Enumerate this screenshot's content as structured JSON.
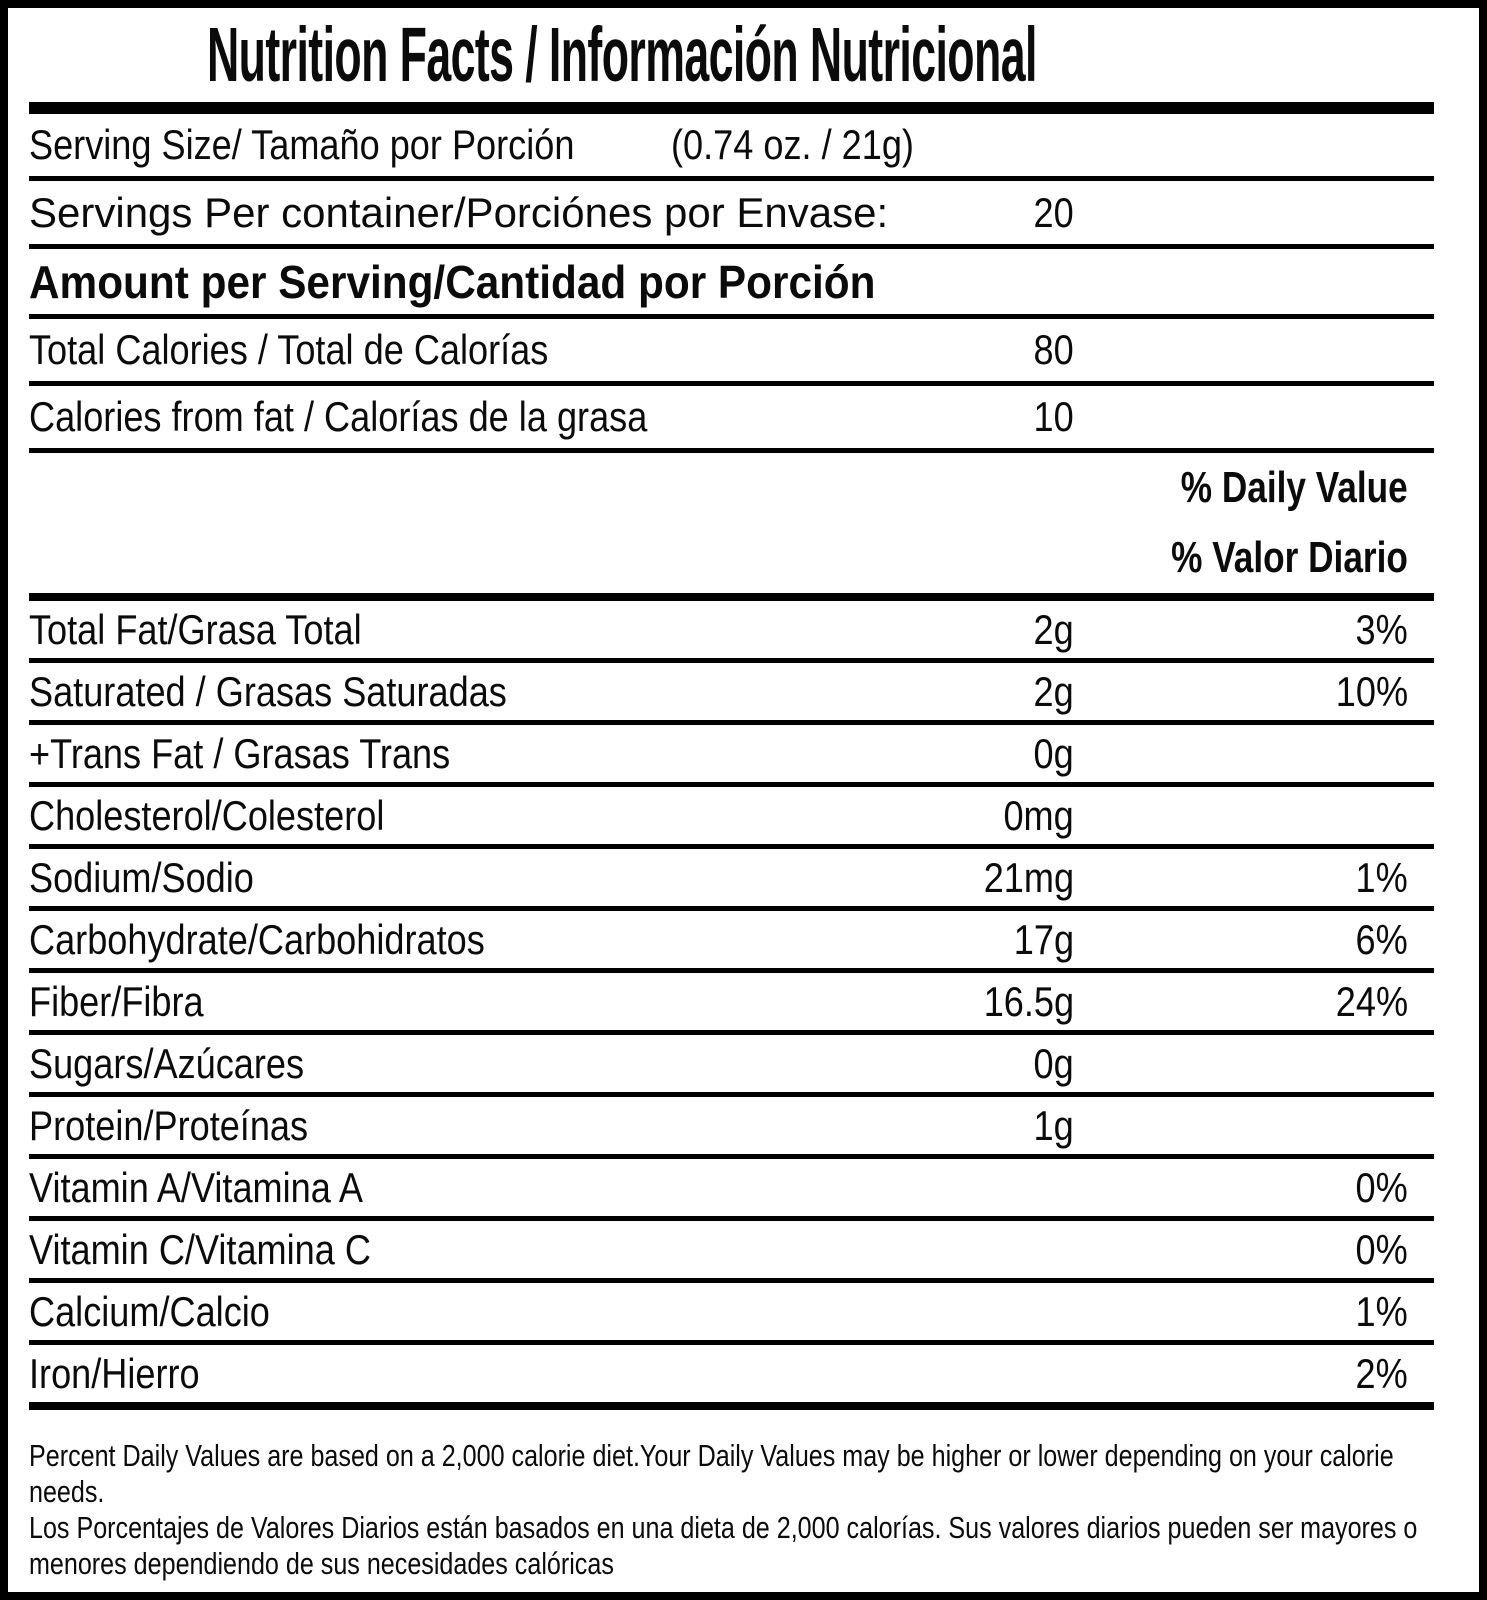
{
  "label": {
    "title": "Nutrition Facts / Información Nutricional",
    "serving_size": {
      "label": "Serving Size/ Tamaño por Porción",
      "value": "(0.74 oz. / 21g)"
    },
    "servings_per_container": {
      "label": "Servings Per container/Porciónes por Envase:",
      "value": "20"
    },
    "amount_per_serving_heading": "Amount per Serving/Cantidad por Porción",
    "calories": [
      {
        "label": "Total Calories / Total de Calorías",
        "value": "80"
      },
      {
        "label": "Calories from fat / Calorías de la grasa",
        "value": "10"
      }
    ],
    "daily_value_heading": {
      "en": "% Daily Value",
      "es": "% Valor Diario"
    },
    "nutrients": [
      {
        "label": "Total Fat/Grasa Total",
        "amount": "2g",
        "dv": "3%"
      },
      {
        "label": "Saturated / Grasas Saturadas",
        "amount": "2g",
        "dv": "10%"
      },
      {
        "label": "+Trans Fat / Grasas Trans",
        "amount": "0g",
        "dv": ""
      },
      {
        "label": "Cholesterol/Colesterol",
        "amount": "0mg",
        "dv": ""
      },
      {
        "label": "Sodium/Sodio",
        "amount": "21mg",
        "dv": "1%"
      },
      {
        "label": "Carbohydrate/Carbohidratos",
        "amount": "17g",
        "dv": "6%"
      },
      {
        "label": "Fiber/Fibra",
        "amount": "16.5g",
        "dv": "24%"
      },
      {
        "label": "Sugars/Azúcares",
        "amount": "0g",
        "dv": ""
      },
      {
        "label": "Protein/Proteínas",
        "amount": "1g",
        "dv": ""
      },
      {
        "label": "Vitamin A/Vitamina A",
        "amount": "",
        "dv": "0%"
      },
      {
        "label": "Vitamin C/Vitamina C",
        "amount": "",
        "dv": "0%"
      },
      {
        "label": "Calcium/Calcio",
        "amount": "",
        "dv": "1%"
      },
      {
        "label": "Iron/Hierro",
        "amount": "",
        "dv": "2%"
      }
    ],
    "footnote_en": "Percent Daily Values are based on a 2,000 calorie diet.Your Daily Values may be higher or lower depending on your calorie needs.",
    "footnote_es": "Los Porcentajes de Valores Diarios están basados en una dieta de 2,000 calorías. Sus valores diarios pueden ser mayores o menores dependiendo de sus necesidades calóricas",
    "colors": {
      "text": "#0b0b0b",
      "rule": "#000000",
      "background": "#ffffff"
    }
  }
}
